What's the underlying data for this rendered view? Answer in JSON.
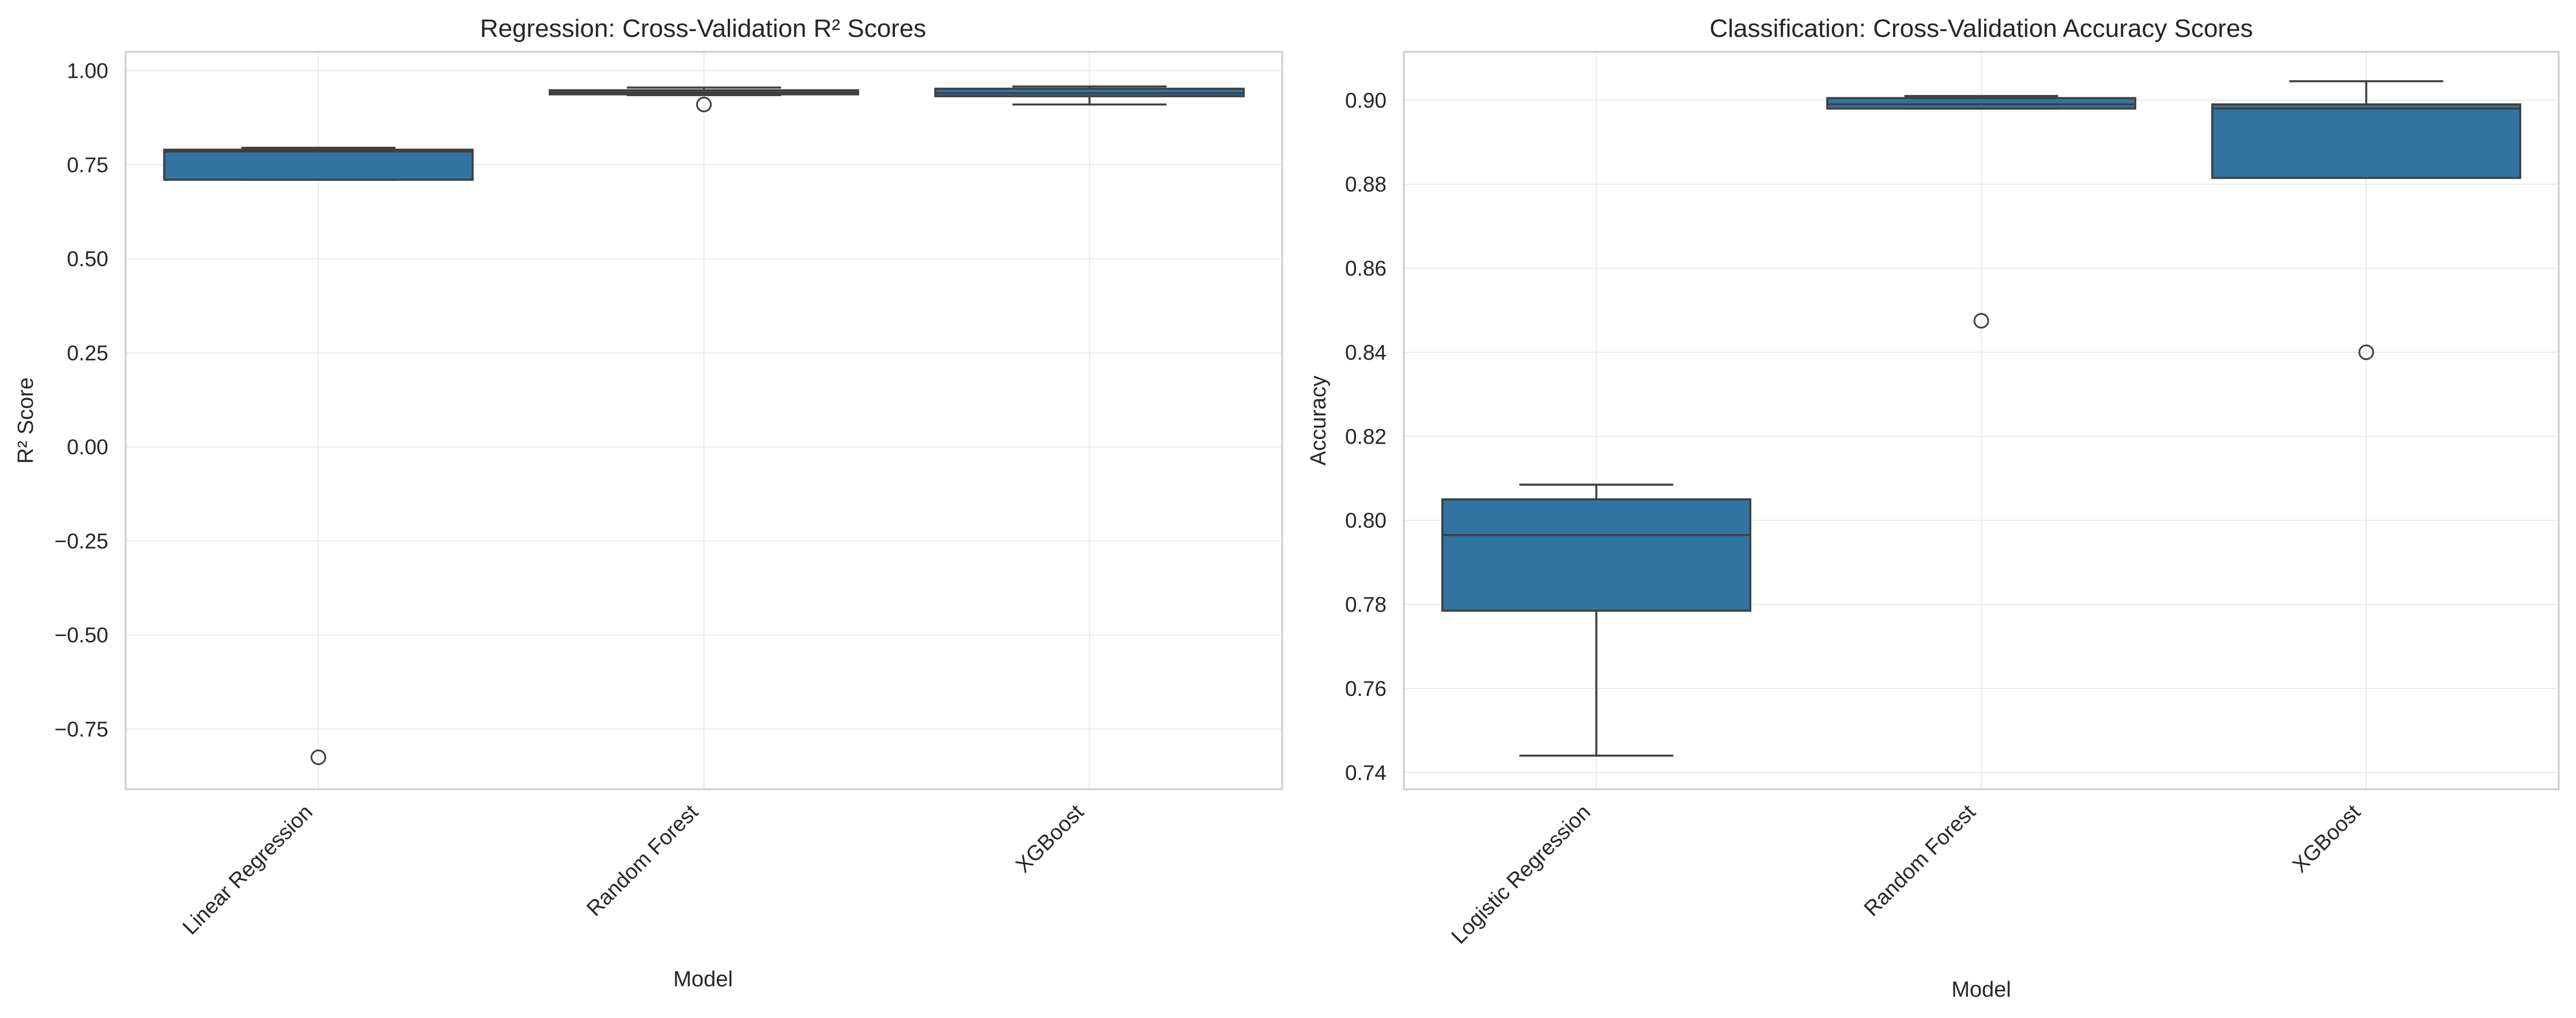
{
  "chart_data": [
    {
      "type": "box",
      "title": "Regression: Cross-Validation R² Scores",
      "xlabel": "Model",
      "ylabel": "R² Score",
      "ylim": [
        -0.91,
        1.05
      ],
      "yticks": [
        1.0,
        0.75,
        0.5,
        0.25,
        0.0,
        -0.25,
        -0.5,
        -0.75
      ],
      "ytick_labels": [
        "1.00",
        "0.75",
        "0.50",
        "0.25",
        "0.00",
        "−0.25",
        "−0.50",
        "−0.75"
      ],
      "grid": true,
      "box_color": "#3274a1",
      "categories": [
        "Linear Regression",
        "Random Forest",
        "XGBoost"
      ],
      "boxes": [
        {
          "whislo": 0.71,
          "q1": 0.71,
          "med": 0.785,
          "q3": 0.79,
          "whishi": 0.795,
          "fliers": [
            -0.825
          ]
        },
        {
          "whislo": 0.935,
          "q1": 0.937,
          "med": 0.942,
          "q3": 0.948,
          "whishi": 0.955,
          "fliers": [
            0.91
          ]
        },
        {
          "whislo": 0.91,
          "q1": 0.932,
          "med": 0.94,
          "q3": 0.952,
          "whishi": 0.958,
          "fliers": []
        }
      ]
    },
    {
      "type": "box",
      "title": "Classification: Cross-Validation Accuracy Scores",
      "xlabel": "Model",
      "ylabel": "Accuracy",
      "ylim": [
        0.736,
        0.9115
      ],
      "yticks": [
        0.74,
        0.76,
        0.78,
        0.8,
        0.82,
        0.84,
        0.86,
        0.88,
        0.9
      ],
      "ytick_labels": [
        "0.74",
        "0.76",
        "0.78",
        "0.80",
        "0.82",
        "0.84",
        "0.86",
        "0.88",
        "0.90"
      ],
      "grid": true,
      "box_color": "#3274a1",
      "categories": [
        "Logistic Regression",
        "Random Forest",
        "XGBoost"
      ],
      "boxes": [
        {
          "whislo": 0.744,
          "q1": 0.7785,
          "med": 0.7965,
          "q3": 0.805,
          "whishi": 0.8085,
          "fliers": []
        },
        {
          "whislo": 0.898,
          "q1": 0.898,
          "med": 0.899,
          "q3": 0.9005,
          "whishi": 0.901,
          "fliers": [
            0.8475
          ]
        },
        {
          "whislo": 0.8815,
          "q1": 0.8815,
          "med": 0.898,
          "q3": 0.899,
          "whishi": 0.9045,
          "fliers": [
            0.84
          ]
        }
      ]
    }
  ]
}
